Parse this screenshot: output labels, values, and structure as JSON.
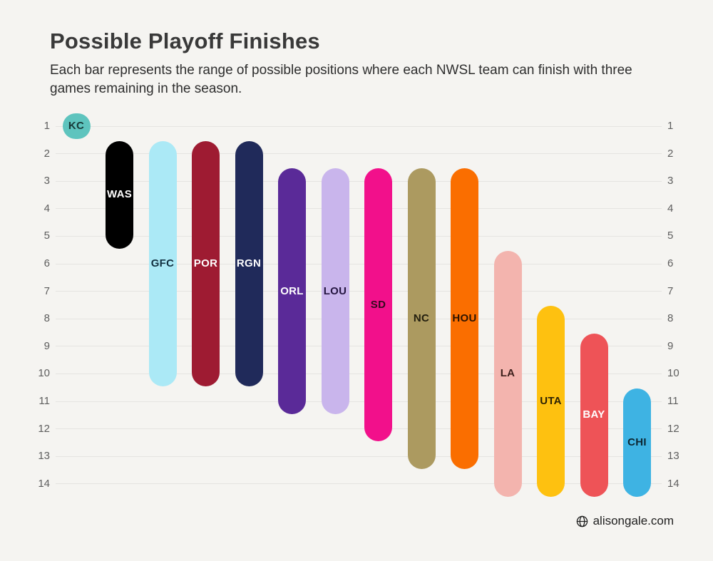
{
  "chart_data": {
    "type": "bar",
    "subtype": "floating-range-capsules",
    "title": "Possible Playoff Finishes",
    "subtitle": "Each bar represents the range of possible positions where each NWSL team can finish with three games remaining in the season.",
    "y_axis": {
      "min": 1,
      "max": 14,
      "inverted": true,
      "ticks_on_both_sides": true
    },
    "y_ticks": [
      1,
      2,
      3,
      4,
      5,
      6,
      7,
      8,
      9,
      10,
      11,
      12,
      13,
      14
    ],
    "grid": true,
    "legend": false,
    "teams": [
      {
        "label": "KC",
        "best": 1,
        "worst": 1,
        "color": "#5ec4be",
        "label_color": "#173a38"
      },
      {
        "label": "WAS",
        "best": 2,
        "worst": 5,
        "color": "#000000",
        "label_color": "#ffffff"
      },
      {
        "label": "GFC",
        "best": 2,
        "worst": 10,
        "color": "#abe9f6",
        "label_color": "#123040"
      },
      {
        "label": "POR",
        "best": 2,
        "worst": 10,
        "color": "#9e1b32",
        "label_color": "#ffffff"
      },
      {
        "label": "RGN",
        "best": 2,
        "worst": 10,
        "color": "#202a5a",
        "label_color": "#ffffff"
      },
      {
        "label": "ORL",
        "best": 3,
        "worst": 11,
        "color": "#5a2a98",
        "label_color": "#ffffff"
      },
      {
        "label": "LOU",
        "best": 3,
        "worst": 11,
        "color": "#c9b5ec",
        "label_color": "#241540"
      },
      {
        "label": "SD",
        "best": 3,
        "worst": 12,
        "color": "#f2108b",
        "label_color": "#330a1e"
      },
      {
        "label": "NC",
        "best": 3,
        "worst": 13,
        "color": "#ac9a60",
        "label_color": "#221e0e"
      },
      {
        "label": "HOU",
        "best": 3,
        "worst": 13,
        "color": "#fa6e00",
        "label_color": "#2d1400"
      },
      {
        "label": "LA",
        "best": 6,
        "worst": 14,
        "color": "#f3b4ae",
        "label_color": "#3c1f1b"
      },
      {
        "label": "UTA",
        "best": 8,
        "worst": 14,
        "color": "#fec110",
        "label_color": "#2e2304"
      },
      {
        "label": "BAY",
        "best": 9,
        "worst": 14,
        "color": "#ee5357",
        "label_color": "#ffffff"
      },
      {
        "label": "CHI",
        "best": 11,
        "worst": 14,
        "color": "#3eb3e3",
        "label_color": "#0c2733"
      }
    ]
  },
  "footer": {
    "credit": "alisongale.com"
  }
}
